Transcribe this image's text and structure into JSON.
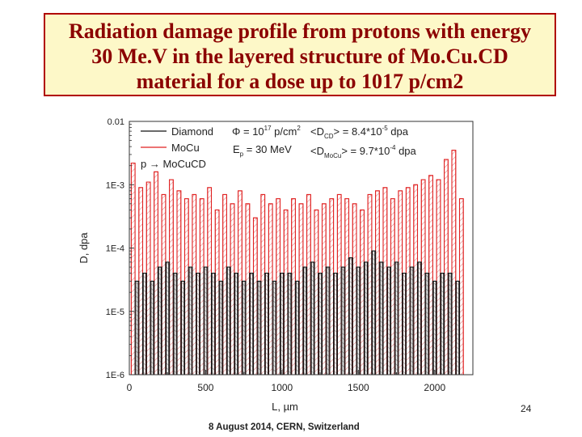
{
  "slide": {
    "title_lines": [
      "Radiation damage profile from protons with energy",
      "30 Me.V in the layered structure of Mo.Cu.CD",
      "material for a dose up to 1017 p/cm2"
    ],
    "footer": "8 August 2014, CERN, Switzerland",
    "page_number": "24"
  },
  "colors": {
    "title_text": "#8b0000",
    "title_bg": "#fdf8c8",
    "title_border": "#b00000",
    "diamond": "#111111",
    "mocu": "#e02020"
  },
  "chart_data": {
    "type": "line",
    "title": "",
    "xlabel": "L, µm",
    "ylabel": "D, dpa",
    "x_scale": "linear",
    "y_scale": "log",
    "xlim": [
      0,
      2250
    ],
    "ylim": [
      1e-06,
      0.01
    ],
    "x_ticks": [
      0,
      500,
      1000,
      1500,
      2000
    ],
    "x_tick_labels": [
      "0",
      "500",
      "1000",
      "1500",
      "2000"
    ],
    "y_ticks": [
      1e-06,
      1e-05,
      0.0001,
      0.001,
      0.01
    ],
    "y_tick_labels": [
      "1E-6",
      "1E-5",
      "1E-4",
      "1E-3",
      "0.01"
    ],
    "legend": {
      "position": "top-left",
      "entries": [
        "Diamond",
        "MoCu",
        "p → MoCuCD"
      ],
      "annotations": [
        {
          "main": "Φ = 10",
          "sup": "17",
          "rest": " p/cm",
          "sup2": "2"
        },
        {
          "main": "E",
          "sub": "p",
          "rest": " = 30 MeV"
        },
        {
          "main": "<D",
          "sub": "CD",
          "rest": "> = 8.4*10",
          "sup": "-5",
          "tail": " dpa"
        },
        {
          "main": "<D",
          "sub": "MoCu",
          "rest": "> = 9.7*10",
          "sup": "-4",
          "tail": " dpa"
        }
      ]
    },
    "layer_period_um": 50,
    "layer_first_um": 25,
    "layer_last_um": 2150,
    "series": [
      {
        "name": "MoCu",
        "description": "peak damage in MoCu layers",
        "x": [
          25,
          75,
          125,
          175,
          225,
          275,
          325,
          375,
          425,
          475,
          525,
          575,
          625,
          675,
          725,
          775,
          825,
          875,
          925,
          975,
          1025,
          1075,
          1125,
          1175,
          1225,
          1275,
          1325,
          1375,
          1425,
          1475,
          1525,
          1575,
          1625,
          1675,
          1725,
          1775,
          1825,
          1875,
          1925,
          1975,
          2025,
          2075,
          2125,
          2175
        ],
        "values": [
          0.0022,
          0.0009,
          0.0011,
          0.0016,
          0.0007,
          0.0012,
          0.0008,
          0.0006,
          0.0007,
          0.0006,
          0.0009,
          0.0004,
          0.0007,
          0.0005,
          0.0008,
          0.0005,
          0.0003,
          0.0007,
          0.0005,
          0.0006,
          0.0004,
          0.0006,
          0.0005,
          0.0007,
          0.0004,
          0.0005,
          0.0006,
          0.0007,
          0.0006,
          0.0005,
          0.0004,
          0.0007,
          0.0008,
          0.0009,
          0.0006,
          0.0008,
          0.0009,
          0.001,
          0.0012,
          0.0014,
          0.0012,
          0.0025,
          0.0035,
          0.0006
        ]
      },
      {
        "name": "Diamond",
        "description": "peak damage in diamond layers",
        "x": [
          50,
          100,
          150,
          200,
          250,
          300,
          350,
          400,
          450,
          500,
          550,
          600,
          650,
          700,
          750,
          800,
          850,
          900,
          950,
          1000,
          1050,
          1100,
          1150,
          1200,
          1250,
          1300,
          1350,
          1400,
          1450,
          1500,
          1550,
          1600,
          1650,
          1700,
          1750,
          1800,
          1850,
          1900,
          1950,
          2000,
          2050,
          2100,
          2150
        ],
        "values": [
          3e-05,
          4e-05,
          3e-05,
          5e-05,
          6e-05,
          4e-05,
          3e-05,
          5e-05,
          4e-05,
          5e-05,
          4e-05,
          3e-05,
          5e-05,
          4e-05,
          3e-05,
          4e-05,
          3e-05,
          4e-05,
          3e-05,
          4e-05,
          4e-05,
          3e-05,
          5e-05,
          6e-05,
          4e-05,
          5e-05,
          4e-05,
          5e-05,
          7e-05,
          5e-05,
          6e-05,
          9e-05,
          6e-05,
          5e-05,
          6e-05,
          4e-05,
          5e-05,
          6e-05,
          4e-05,
          3e-05,
          4e-05,
          4e-05,
          3e-05
        ]
      }
    ]
  }
}
